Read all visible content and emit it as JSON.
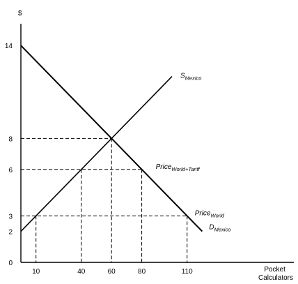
{
  "chart_data": {
    "type": "line",
    "title": "",
    "ylabel": "$",
    "xlabel": "Pocket Calculators",
    "xlim": [
      0,
      140
    ],
    "ylim": [
      0,
      16
    ],
    "grid": false,
    "colors": {
      "curves": "#000000",
      "guides": "#000000",
      "axes": "#000000"
    },
    "x_ticks": [
      10,
      40,
      60,
      80,
      110
    ],
    "y_ticks": [
      2,
      3,
      6,
      8,
      14
    ],
    "series": [
      {
        "name": "D",
        "name_subscript": "Mexico",
        "x": [
          0,
          120
        ],
        "y": [
          14,
          2
        ]
      },
      {
        "name": "S",
        "name_subscript": "Mexico",
        "x": [
          0,
          100
        ],
        "y": [
          2,
          12
        ]
      }
    ],
    "price_lines": [
      {
        "name": "Price",
        "name_subscript": "World+Tariff",
        "y": 6,
        "x_from": 0,
        "x_to": 80
      },
      {
        "name": "Price",
        "name_subscript": "World",
        "y": 3,
        "x_from": 0,
        "x_to": 110
      }
    ],
    "reference_points": [
      {
        "x": 60,
        "y": 8
      },
      {
        "x": 40,
        "y": 6
      },
      {
        "x": 80,
        "y": 6
      },
      {
        "x": 10,
        "y": 3
      },
      {
        "x": 110,
        "y": 3
      }
    ]
  }
}
